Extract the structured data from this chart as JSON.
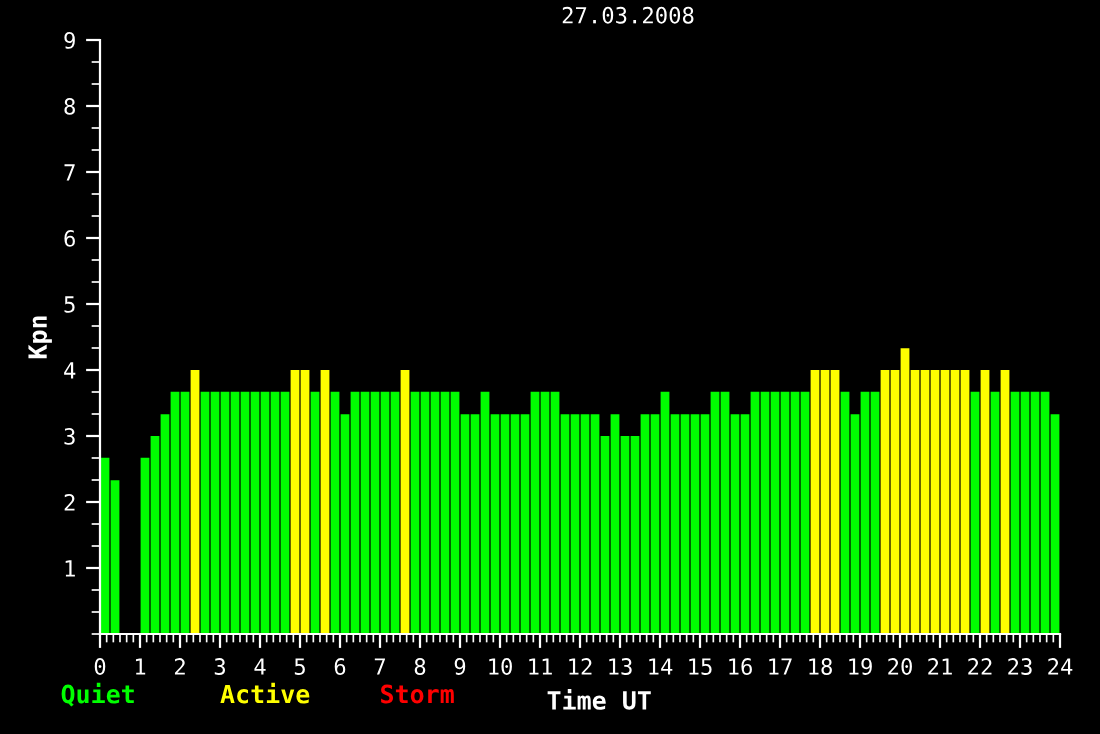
{
  "chart_data": {
    "type": "bar",
    "title": "27.03.2008",
    "xlabel": "Time UT",
    "ylabel": "Kpn",
    "x": [
      0.125,
      0.375,
      0.625,
      0.875,
      1.125,
      1.375,
      1.625,
      1.875,
      2.125,
      2.375,
      2.625,
      2.875,
      3.125,
      3.375,
      3.625,
      3.875,
      4.125,
      4.375,
      4.625,
      4.875,
      5.125,
      5.375,
      5.625,
      5.875,
      6.125,
      6.375,
      6.625,
      6.875,
      7.125,
      7.375,
      7.625,
      7.875,
      8.125,
      8.375,
      8.625,
      8.875,
      9.125,
      9.375,
      9.625,
      9.875,
      10.125,
      10.375,
      10.625,
      10.875,
      11.125,
      11.375,
      11.625,
      11.875,
      12.125,
      12.375,
      12.625,
      12.875,
      13.125,
      13.375,
      13.625,
      13.875,
      14.125,
      14.375,
      14.625,
      14.875,
      15.125,
      15.375,
      15.625,
      15.875,
      16.125,
      16.375,
      16.625,
      16.875,
      17.125,
      17.375,
      17.625,
      17.875,
      18.125,
      18.375,
      18.625,
      18.875,
      19.125,
      19.375,
      19.625,
      19.875,
      20.125,
      20.375,
      20.625,
      20.875,
      21.125,
      21.375,
      21.625,
      21.875,
      22.125,
      22.375,
      22.625,
      22.875,
      23.125,
      23.375,
      23.625,
      23.875
    ],
    "series": [
      {
        "name": "Quiet",
        "color": "#00ff00",
        "values": [
          2.67,
          2.33,
          null,
          null,
          2.67,
          3.0,
          3.33,
          3.67,
          3.67,
          null,
          3.67,
          3.67,
          3.67,
          3.67,
          3.67,
          3.67,
          3.67,
          3.67,
          3.67,
          null,
          null,
          3.67,
          null,
          3.67,
          3.33,
          3.67,
          3.67,
          3.67,
          3.67,
          3.67,
          null,
          3.67,
          3.67,
          3.67,
          3.67,
          3.67,
          3.33,
          3.33,
          3.67,
          3.33,
          3.33,
          3.33,
          3.33,
          3.67,
          3.67,
          3.67,
          3.33,
          3.33,
          3.33,
          3.33,
          3.0,
          3.33,
          3.0,
          3.0,
          3.33,
          3.33,
          3.67,
          3.33,
          3.33,
          3.33,
          3.33,
          3.67,
          3.67,
          3.33,
          3.33,
          3.67,
          3.67,
          3.67,
          3.67,
          3.67,
          3.67,
          null,
          null,
          null,
          3.67,
          3.33,
          3.67,
          3.67,
          null,
          null,
          null,
          null,
          null,
          null,
          null,
          null,
          null,
          3.67,
          null,
          3.67,
          null,
          3.67,
          3.67,
          3.67,
          3.67,
          3.33
        ]
      },
      {
        "name": "Active",
        "color": "#ffff00",
        "values": [
          null,
          null,
          null,
          null,
          null,
          null,
          null,
          null,
          null,
          4,
          null,
          null,
          null,
          null,
          null,
          null,
          null,
          null,
          null,
          4,
          4,
          null,
          4,
          null,
          null,
          null,
          null,
          null,
          null,
          null,
          4,
          null,
          null,
          null,
          null,
          null,
          null,
          null,
          null,
          null,
          null,
          null,
          null,
          null,
          null,
          null,
          null,
          null,
          null,
          null,
          null,
          null,
          null,
          null,
          null,
          null,
          null,
          null,
          null,
          null,
          null,
          null,
          null,
          null,
          null,
          null,
          null,
          null,
          null,
          null,
          null,
          4,
          4,
          4,
          null,
          null,
          null,
          null,
          4,
          4,
          4.33,
          4,
          4,
          4,
          4,
          4,
          4,
          null,
          4,
          null,
          4,
          null,
          null,
          null,
          null,
          null
        ]
      },
      {
        "name": "Storm",
        "color": "#ff0000",
        "values": [
          null,
          null,
          null,
          null,
          null,
          null,
          null,
          null,
          null,
          null,
          null,
          null,
          null,
          null,
          null,
          null,
          null,
          null,
          null,
          null,
          null,
          null,
          null,
          null,
          null,
          null,
          null,
          null,
          null,
          null,
          null,
          null,
          null,
          null,
          null,
          null,
          null,
          null,
          null,
          null,
          null,
          null,
          null,
          null,
          null,
          null,
          null,
          null,
          null,
          null,
          null,
          null,
          null,
          null,
          null,
          null,
          null,
          null,
          null,
          null,
          null,
          null,
          null,
          null,
          null,
          null,
          null,
          null,
          null,
          null,
          null,
          null,
          null,
          null,
          null,
          null,
          null,
          null,
          null,
          null,
          null,
          null,
          null,
          null,
          null,
          null,
          null,
          null,
          null,
          null,
          null,
          null,
          null,
          null,
          null,
          null
        ]
      }
    ],
    "xlim": [
      0,
      24
    ],
    "xticks": [
      0,
      1,
      2,
      3,
      4,
      5,
      6,
      7,
      8,
      9,
      10,
      11,
      12,
      13,
      14,
      15,
      16,
      17,
      18,
      19,
      20,
      21,
      22,
      23,
      24
    ],
    "ylim": [
      0,
      9
    ],
    "yticks": [
      1,
      2,
      3,
      4,
      5,
      6,
      7,
      8,
      9
    ],
    "grid": false,
    "legend": "bottom left"
  }
}
